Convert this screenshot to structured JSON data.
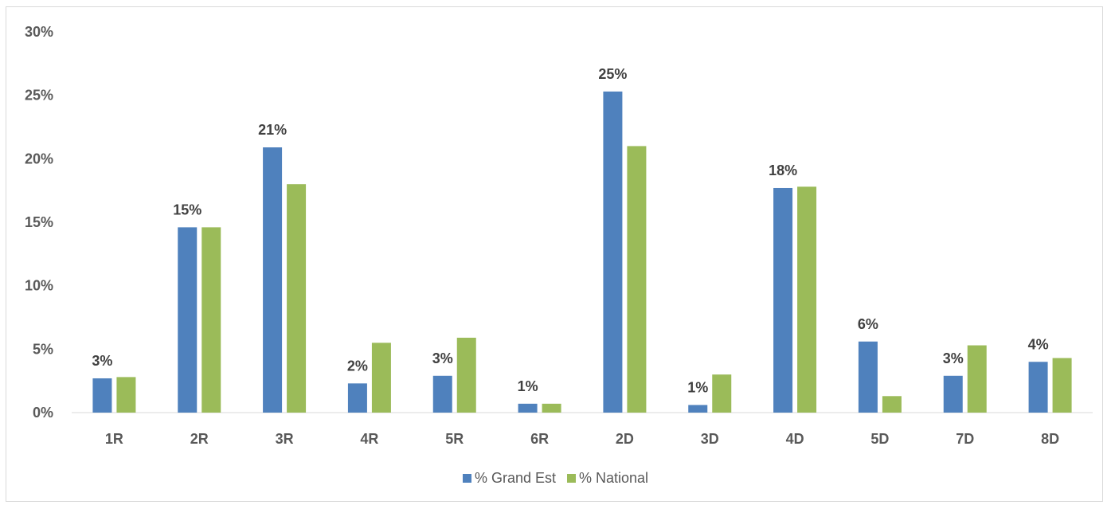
{
  "chart_data": {
    "type": "bar",
    "categories": [
      "1R",
      "2R",
      "3R",
      "4R",
      "5R",
      "6R",
      "2D",
      "3D",
      "4D",
      "5D",
      "7D",
      "8D"
    ],
    "series": [
      {
        "name": "% Grand Est",
        "color": "#4f81bd",
        "values": [
          2.7,
          14.6,
          20.9,
          2.3,
          2.9,
          0.7,
          25.3,
          0.6,
          17.7,
          5.6,
          2.9,
          4.0
        ],
        "data_labels": [
          "3%",
          "15%",
          "21%",
          "2%",
          "3%",
          "1%",
          "25%",
          "1%",
          "18%",
          "6%",
          "3%",
          "4%"
        ]
      },
      {
        "name": "% National",
        "color": "#9bbb59",
        "values": [
          2.8,
          14.6,
          18.0,
          5.5,
          5.9,
          0.7,
          21.0,
          3.0,
          17.8,
          1.3,
          5.3,
          4.3
        ]
      }
    ],
    "y_ticks": [
      "0%",
      "5%",
      "10%",
      "15%",
      "20%",
      "25%",
      "30%"
    ],
    "ylim": [
      0,
      30
    ],
    "legend_position": "bottom",
    "grid": false
  }
}
